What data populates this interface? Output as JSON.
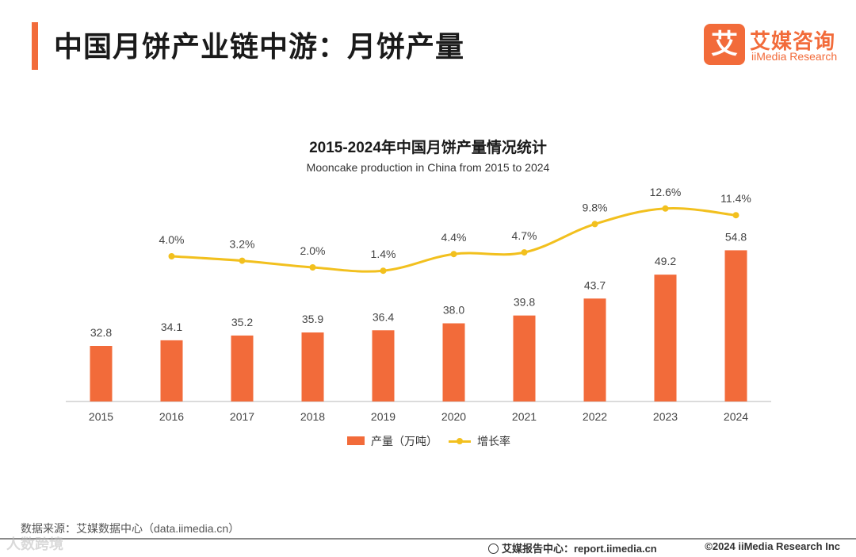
{
  "header": {
    "title": "中国月饼产业链中游：月饼产量",
    "logo_mark": "艾",
    "logo_cn": "艾媒咨询",
    "logo_en": "iiMedia Research"
  },
  "colors": {
    "accent": "#f26b3a",
    "bar": "#f26b3a",
    "line": "#f2c01e",
    "axis": "#cfcfcf"
  },
  "chart_data": {
    "type": "bar+line",
    "title": "2015-2024年中国月饼产量情况统计",
    "subtitle": "Mooncake production  in China from 2015 to 2024",
    "categories": [
      "2015",
      "2016",
      "2017",
      "2018",
      "2019",
      "2020",
      "2021",
      "2022",
      "2023",
      "2024"
    ],
    "series": [
      {
        "name": "产量（万吨）",
        "type": "bar",
        "values": [
          32.8,
          34.1,
          35.2,
          35.9,
          36.4,
          38.0,
          39.8,
          43.7,
          49.2,
          54.8
        ],
        "labels": [
          "32.8",
          "34.1",
          "35.2",
          "35.9",
          "36.4",
          "38.0",
          "39.8",
          "43.7",
          "49.2",
          "54.8"
        ]
      },
      {
        "name": "增长率",
        "type": "line",
        "values": [
          null,
          4.0,
          3.2,
          2.0,
          1.4,
          4.4,
          4.7,
          9.8,
          12.6,
          11.4
        ],
        "labels": [
          "",
          "4.0%",
          "3.2%",
          "2.0%",
          "1.4%",
          "4.4%",
          "4.7%",
          "9.8%",
          "12.6%",
          "11.4%"
        ]
      }
    ],
    "legend_position": "bottom-center",
    "grid": false
  },
  "footer": {
    "source": "数据来源：艾媒数据中心（data.iimedia.cn）",
    "watermark": "人数跨境",
    "report": "艾媒报告中心：report.iimedia.cn",
    "copyright": "©2024  iiMedia Research  Inc"
  }
}
